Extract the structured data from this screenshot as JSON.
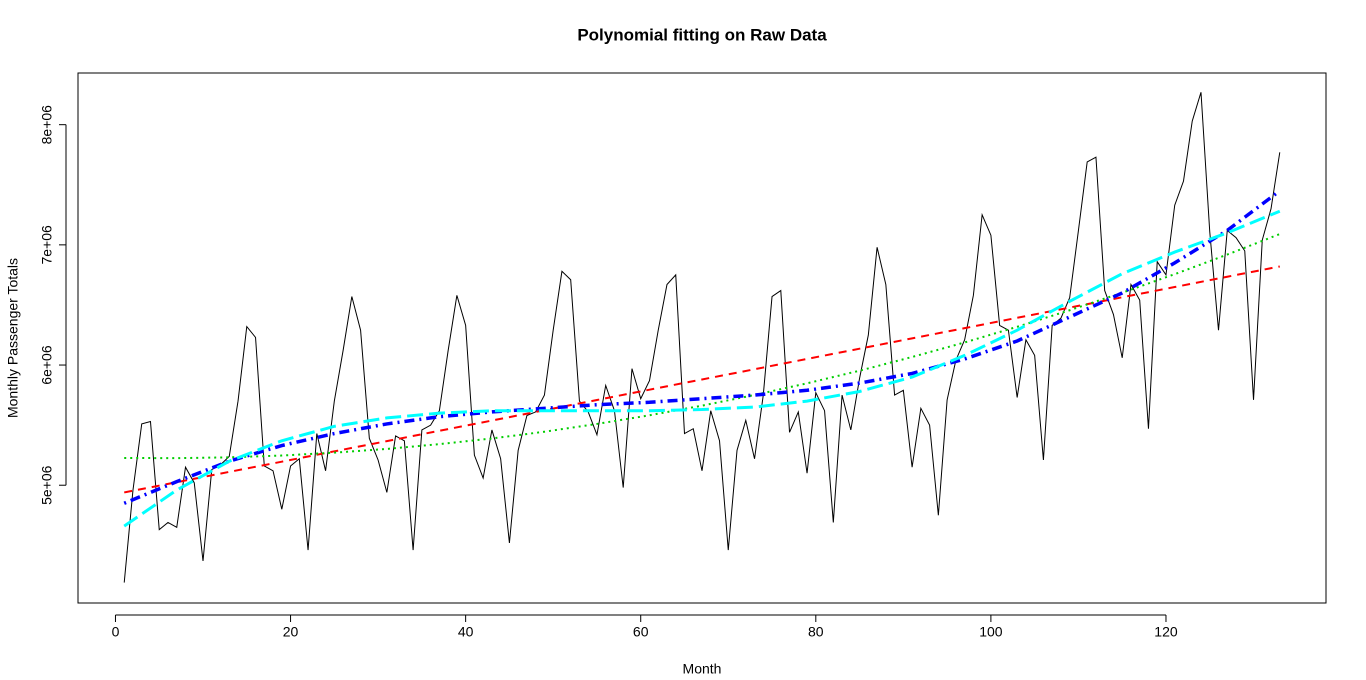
{
  "chart_data": {
    "type": "line",
    "title": "Polynomial fitting on Raw Data",
    "x_label": "Month",
    "y_label": "Monthly Passenger Totals",
    "xlim": [
      -4.28,
      138.28
    ],
    "ylim": [
      4020000,
      8430000
    ],
    "xticks": [
      0,
      20,
      40,
      60,
      80,
      100,
      120
    ],
    "yticks": [
      {
        "value": 5000000,
        "label": "5e+06"
      },
      {
        "value": 6000000,
        "label": "6e+06"
      },
      {
        "value": 7000000,
        "label": "7e+06"
      },
      {
        "value": 8000000,
        "label": "8e+06"
      }
    ],
    "series": [
      {
        "color": "#000000",
        "style": "solid",
        "lwd": 1,
        "x": [
          1,
          2,
          3,
          4,
          5,
          6,
          7,
          8,
          9,
          10,
          11,
          12,
          13,
          14,
          15,
          16,
          17,
          18,
          19,
          20,
          21,
          22,
          23,
          24,
          25,
          26,
          27,
          28,
          29,
          30,
          31,
          32,
          33,
          34,
          35,
          36,
          37,
          38,
          39,
          40,
          41,
          42,
          43,
          44,
          45,
          46,
          47,
          48,
          49,
          50,
          51,
          52,
          53,
          54,
          55,
          56,
          57,
          58,
          59,
          60,
          61,
          62,
          63,
          64,
          65,
          66,
          67,
          68,
          69,
          70,
          71,
          72,
          73,
          74,
          75,
          76,
          77,
          78,
          79,
          80,
          81,
          82,
          83,
          84,
          85,
          86,
          87,
          88,
          89,
          90,
          91,
          92,
          93,
          94,
          95,
          96,
          97,
          98,
          99,
          100,
          101,
          102,
          103,
          104,
          105,
          106,
          107,
          108,
          109,
          110,
          111,
          112,
          113,
          114,
          115,
          116,
          117,
          118,
          119,
          120,
          121,
          122,
          123,
          124,
          125,
          126,
          127,
          128,
          129,
          130,
          131,
          132,
          133
        ],
        "values": [
          4190000,
          4960000,
          5510000,
          5530000,
          4630000,
          4690000,
          4650000,
          5150000,
          5020000,
          4370000,
          5130000,
          5170000,
          5240000,
          5700000,
          6320000,
          6230000,
          5160000,
          5120000,
          4800000,
          5160000,
          5220000,
          4460000,
          5430000,
          5120000,
          5700000,
          6120000,
          6570000,
          6290000,
          5390000,
          5210000,
          4940000,
          5410000,
          5370000,
          4460000,
          5460000,
          5500000,
          5620000,
          6120000,
          6580000,
          6330000,
          5250000,
          5060000,
          5460000,
          5220000,
          4520000,
          5290000,
          5580000,
          5610000,
          5750000,
          6290000,
          6780000,
          6710000,
          5700000,
          5610000,
          5420000,
          5830000,
          5620000,
          4980000,
          5970000,
          5720000,
          5870000,
          6290000,
          6670000,
          6750000,
          5430000,
          5470000,
          5120000,
          5620000,
          5370000,
          4460000,
          5290000,
          5540000,
          5220000,
          5750000,
          6570000,
          6620000,
          5440000,
          5610000,
          5100000,
          5770000,
          5620000,
          4690000,
          5750000,
          5460000,
          5890000,
          6250000,
          6980000,
          6670000,
          5750000,
          5790000,
          5150000,
          5640000,
          5500000,
          4750000,
          5710000,
          6040000,
          6210000,
          6580000,
          7250000,
          7080000,
          6330000,
          6290000,
          5730000,
          6210000,
          6080000,
          5210000,
          6330000,
          6390000,
          6560000,
          7120000,
          7690000,
          7730000,
          6620000,
          6420000,
          6060000,
          6670000,
          6540000,
          5470000,
          6860000,
          6750000,
          7330000,
          7530000,
          8030000,
          8270000,
          7110000,
          6290000,
          7120000,
          7060000,
          6950000,
          5710000,
          7040000,
          7300000,
          7770000
        ]
      },
      {
        "color": "#ff0000",
        "style": "dashed",
        "lwd": 2,
        "x": [
          1,
          7,
          13,
          19,
          25,
          31,
          37,
          43,
          49,
          55,
          61,
          67,
          73,
          79,
          85,
          91,
          97,
          103,
          109,
          115,
          121,
          127,
          133
        ],
        "values": [
          4940000,
          5025000,
          5111000,
          5196000,
          5282000,
          5367000,
          5453000,
          5538000,
          5624000,
          5709000,
          5795000,
          5880000,
          5965000,
          6051000,
          6136000,
          6222000,
          6307000,
          6393000,
          6478000,
          6564000,
          6649000,
          6735000,
          6820000
        ]
      },
      {
        "color": "#00cd00",
        "style": "dotted",
        "lwd": 2,
        "x": [
          1,
          7,
          13,
          19,
          25,
          31,
          37,
          43,
          49,
          55,
          61,
          67,
          73,
          79,
          85,
          91,
          97,
          103,
          109,
          115,
          121,
          127,
          133
        ],
        "values": [
          5227000,
          5225000,
          5232000,
          5247000,
          5271000,
          5302000,
          5342000,
          5389000,
          5445000,
          5510000,
          5582000,
          5662000,
          5751000,
          5848000,
          5953000,
          6067000,
          6188000,
          6318000,
          6456000,
          6602000,
          6756000,
          6919000,
          7090000
        ]
      },
      {
        "color": "#0000ff",
        "style": "dotdash",
        "lwd": 3.5,
        "x": [
          1,
          7,
          13,
          19,
          25,
          31,
          37,
          43,
          49,
          55,
          61,
          67,
          73,
          79,
          85,
          91,
          97,
          103,
          109,
          115,
          121,
          127,
          133
        ],
        "values": [
          4850000,
          5030000,
          5200000,
          5330000,
          5430000,
          5510000,
          5570000,
          5610000,
          5640000,
          5670000,
          5690000,
          5720000,
          5750000,
          5790000,
          5850000,
          5930000,
          6050000,
          6200000,
          6400000,
          6600000,
          6850000,
          7120000,
          7450000
        ]
      },
      {
        "color": "#00ffff",
        "style": "longdash",
        "lwd": 3,
        "x": [
          1,
          7,
          13,
          19,
          25,
          31,
          37,
          43,
          49,
          55,
          61,
          67,
          73,
          79,
          85,
          91,
          97,
          103,
          109,
          115,
          121,
          127,
          133
        ],
        "values": [
          4660000,
          4960000,
          5200000,
          5370000,
          5490000,
          5560000,
          5600000,
          5620000,
          5620000,
          5620000,
          5620000,
          5630000,
          5650000,
          5700000,
          5780000,
          5900000,
          6080000,
          6290000,
          6530000,
          6760000,
          6940000,
          7100000,
          7280000
        ]
      }
    ]
  }
}
